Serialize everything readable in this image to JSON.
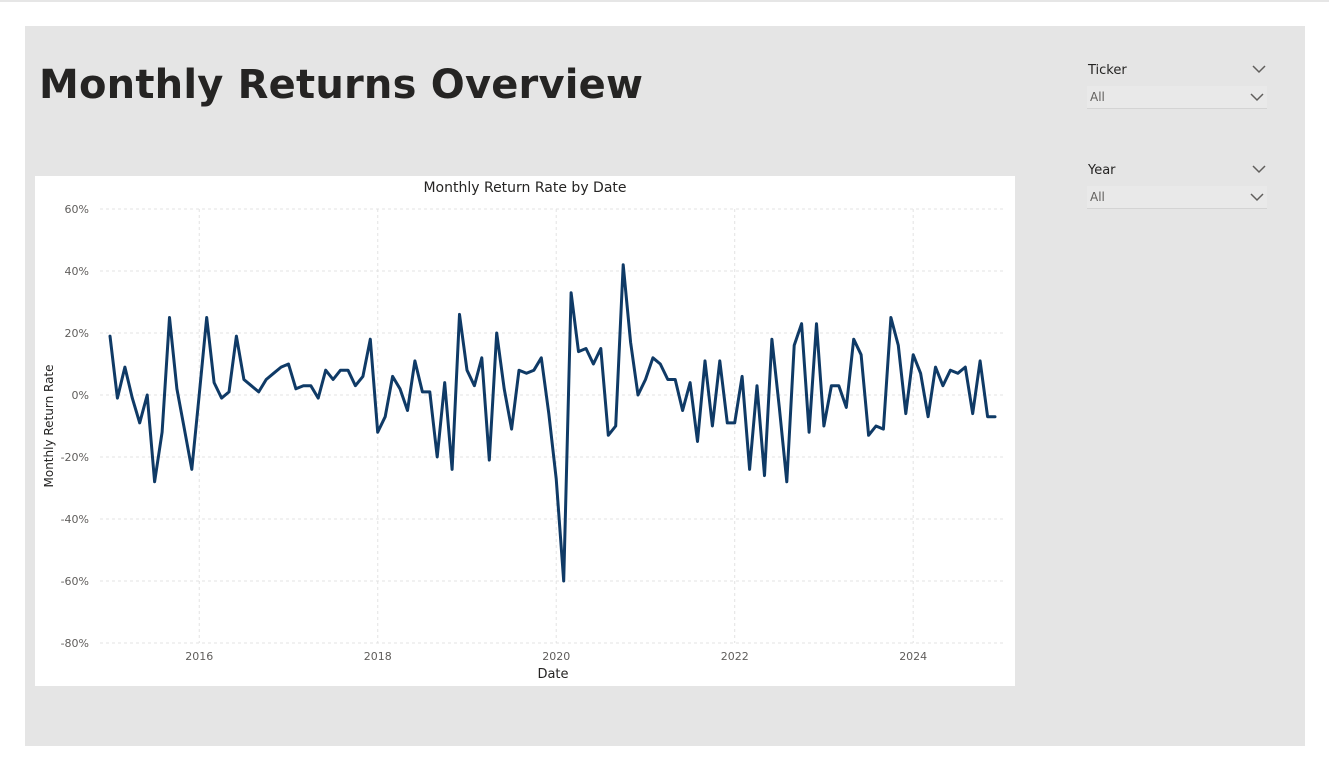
{
  "page": {
    "title": "Monthly Returns Overview"
  },
  "slicers": [
    {
      "title": "Ticker",
      "value": "All",
      "icon": "chevron-down-icon"
    },
    {
      "title": "Year",
      "value": "All",
      "icon": "chevron-down-icon"
    }
  ],
  "colors": {
    "line": "#0f3a66",
    "canvas": "#e5e5e5",
    "card": "#ffffff",
    "grid": "#e3e3e3"
  },
  "chart_data": {
    "type": "line",
    "title": "Monthly Return Rate by Date",
    "xlabel": "Date",
    "ylabel": "Monthly Return Rate",
    "ylim": [
      -0.8,
      0.6
    ],
    "xlim": [
      "2015-01",
      "2024-12"
    ],
    "y_ticks": [
      "60%",
      "40%",
      "20%",
      "0%",
      "-20%",
      "-40%",
      "-60%",
      "-80%"
    ],
    "y_tick_values": [
      0.6,
      0.4,
      0.2,
      0,
      -0.2,
      -0.4,
      -0.6,
      -0.8
    ],
    "x_ticks": [
      "2016",
      "2018",
      "2020",
      "2022",
      "2024"
    ],
    "x_tick_values": [
      "2016-01",
      "2018-01",
      "2020-01",
      "2022-01",
      "2024-01"
    ],
    "grid": true,
    "series": [
      {
        "dates": [
          "2015-01",
          "2015-02",
          "2015-03",
          "2015-04",
          "2015-05",
          "2015-06",
          "2015-07",
          "2015-08",
          "2015-09",
          "2015-10",
          "2015-11",
          "2015-12",
          "2016-01",
          "2016-02",
          "2016-03",
          "2016-04",
          "2016-05",
          "2016-06",
          "2016-07",
          "2016-08",
          "2016-09",
          "2016-10",
          "2016-11",
          "2016-12",
          "2017-01",
          "2017-02",
          "2017-03",
          "2017-04",
          "2017-05",
          "2017-06",
          "2017-07",
          "2017-08",
          "2017-09",
          "2017-10",
          "2017-11",
          "2017-12",
          "2018-01",
          "2018-02",
          "2018-03",
          "2018-04",
          "2018-05",
          "2018-06",
          "2018-07",
          "2018-08",
          "2018-09",
          "2018-10",
          "2018-11",
          "2018-12",
          "2019-01",
          "2019-02",
          "2019-03",
          "2019-04",
          "2019-05",
          "2019-06",
          "2019-07",
          "2019-08",
          "2019-09",
          "2019-10",
          "2019-11",
          "2019-12",
          "2020-01",
          "2020-02",
          "2020-03",
          "2020-04",
          "2020-05",
          "2020-06",
          "2020-07",
          "2020-08",
          "2020-09",
          "2020-10",
          "2020-11",
          "2020-12",
          "2021-01",
          "2021-02",
          "2021-03",
          "2021-04",
          "2021-05",
          "2021-06",
          "2021-07",
          "2021-08",
          "2021-09",
          "2021-10",
          "2021-11",
          "2021-12",
          "2022-01",
          "2022-02",
          "2022-03",
          "2022-04",
          "2022-05",
          "2022-06",
          "2022-07",
          "2022-08",
          "2022-09",
          "2022-10",
          "2022-11",
          "2022-12",
          "2023-01",
          "2023-02",
          "2023-03",
          "2023-04",
          "2023-05",
          "2023-06",
          "2023-07",
          "2023-08",
          "2023-09",
          "2023-10",
          "2023-11",
          "2023-12",
          "2024-01",
          "2024-02",
          "2024-03",
          "2024-04",
          "2024-05",
          "2024-06",
          "2024-07",
          "2024-08",
          "2024-09",
          "2024-10",
          "2024-11",
          "2024-12"
        ],
        "values": [
          0.19,
          -0.01,
          0.09,
          -0.01,
          -0.09,
          0.0,
          -0.28,
          -0.12,
          0.25,
          0.02,
          -0.11,
          -0.24,
          0.0,
          0.25,
          0.04,
          -0.01,
          0.01,
          0.19,
          0.05,
          0.03,
          0.01,
          0.05,
          0.07,
          0.09,
          0.1,
          0.02,
          0.03,
          0.03,
          -0.01,
          0.08,
          0.05,
          0.08,
          0.08,
          0.03,
          0.06,
          0.18,
          -0.12,
          -0.07,
          0.06,
          0.02,
          -0.05,
          0.11,
          0.01,
          0.01,
          -0.2,
          0.04,
          -0.24,
          0.26,
          0.08,
          0.03,
          0.12,
          -0.21,
          0.2,
          0.02,
          -0.11,
          0.08,
          0.07,
          0.08,
          0.12,
          -0.06,
          -0.27,
          -0.6,
          0.33,
          0.14,
          0.15,
          0.1,
          0.15,
          -0.13,
          -0.1,
          0.42,
          0.17,
          0.0,
          0.05,
          0.12,
          0.1,
          0.05,
          0.05,
          -0.05,
          0.04,
          -0.15,
          0.11,
          -0.1,
          0.11,
          -0.09,
          -0.09,
          0.06,
          -0.24,
          0.03,
          -0.26,
          0.18,
          -0.04,
          -0.28,
          0.16,
          0.23,
          -0.12,
          0.23,
          -0.1,
          0.03,
          0.03,
          -0.04,
          0.18,
          0.13,
          -0.13,
          -0.1,
          -0.11,
          0.25,
          0.16,
          -0.06,
          0.13,
          0.07,
          -0.07,
          0.09,
          0.03,
          0.08,
          0.07,
          0.09,
          -0.06,
          0.11,
          -0.07,
          -0.07
        ]
      }
    ]
  }
}
